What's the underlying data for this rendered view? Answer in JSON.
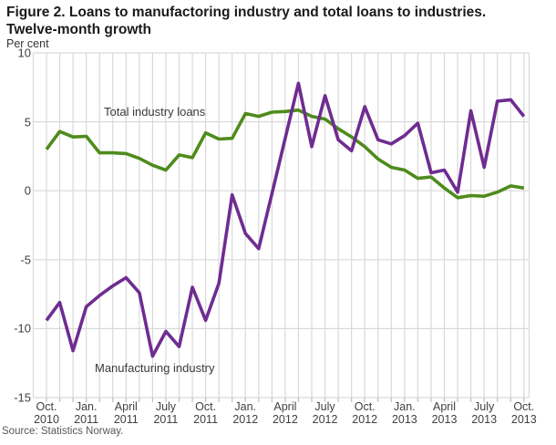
{
  "figure": {
    "title_line1": "Figure 2. Loans to manufactoring industry and total loans to industries.",
    "title_line2": "Twelve-month growth",
    "unit_label": "Per cent",
    "source": "Source: Statistics Norway."
  },
  "colors": {
    "total": "#4e8b1c",
    "manufacturing": "#6f2c91",
    "grid": "#d9d9d9",
    "tick": "#bfbfbf",
    "axis_text": "#404040"
  },
  "chart_data": {
    "type": "line",
    "title": "Figure 2. Loans to manufactoring industry and total loans to industries. Twelve-month growth",
    "ylabel": "Per cent",
    "ylim": [
      -15,
      10
    ],
    "yticks": [
      10,
      5,
      0,
      -5,
      -10,
      -15
    ],
    "grid": "on",
    "legend_position": "inline-annotations",
    "x_months": [
      "Oct 2010",
      "Nov 2010",
      "Dec 2010",
      "Jan 2011",
      "Feb 2011",
      "Mar 2011",
      "Apr 2011",
      "May 2011",
      "Jun 2011",
      "Jul 2011",
      "Aug 2011",
      "Sep 2011",
      "Oct 2011",
      "Nov 2011",
      "Dec 2011",
      "Jan 2012",
      "Feb 2012",
      "Mar 2012",
      "Apr 2012",
      "May 2012",
      "Jun 2012",
      "Jul 2012",
      "Aug 2012",
      "Sep 2012",
      "Oct 2012",
      "Nov 2012",
      "Dec 2012",
      "Jan 2013",
      "Feb 2013",
      "Mar 2013",
      "Apr 2013",
      "May 2013",
      "Jun 2013",
      "Jul 2013",
      "Aug 2013",
      "Sep 2013",
      "Oct 2013"
    ],
    "x_tick_labels": [
      {
        "month": "Oct.",
        "year": "2010"
      },
      {
        "month": "Jan.",
        "year": "2011"
      },
      {
        "month": "April",
        "year": "2011"
      },
      {
        "month": "July",
        "year": "2011"
      },
      {
        "month": "Oct.",
        "year": "2011"
      },
      {
        "month": "Jan.",
        "year": "2012"
      },
      {
        "month": "April",
        "year": "2012"
      },
      {
        "month": "July",
        "year": "2012"
      },
      {
        "month": "Oct.",
        "year": "2012"
      },
      {
        "month": "Jan.",
        "year": "2013"
      },
      {
        "month": "April",
        "year": "2013"
      },
      {
        "month": "July",
        "year": "2013"
      },
      {
        "month": "Oct.",
        "year": "2013"
      }
    ],
    "x_tick_every": 3,
    "series": [
      {
        "name": "Total industry loans",
        "color_key": "total",
        "label_x": 114,
        "label_y": 115,
        "values": [
          3.0,
          4.3,
          3.9,
          3.95,
          2.75,
          2.75,
          2.7,
          2.35,
          1.85,
          1.5,
          2.6,
          2.4,
          4.2,
          3.75,
          3.8,
          5.6,
          5.4,
          5.7,
          5.75,
          5.85,
          5.4,
          5.2,
          4.5,
          3.9,
          3.2,
          2.3,
          1.7,
          1.5,
          0.9,
          1.0,
          0.2,
          -0.5,
          -0.35,
          -0.4,
          -0.1,
          0.35,
          0.2
        ]
      },
      {
        "name": "Manufacturing industry",
        "color_key": "manufacturing",
        "label_x": 104,
        "label_y": 396,
        "values": [
          -9.4,
          -8.1,
          -11.6,
          -8.4,
          -7.6,
          -6.9,
          -6.3,
          -7.4,
          -12.0,
          -10.2,
          -11.3,
          -7.0,
          -9.4,
          -6.7,
          -0.3,
          -3.1,
          -4.2,
          -0.2,
          3.8,
          7.8,
          3.2,
          6.9,
          3.7,
          2.9,
          6.1,
          3.7,
          3.4,
          4.0,
          4.9,
          1.3,
          1.5,
          -0.1,
          5.8,
          1.7,
          6.5,
          6.6,
          5.4
        ]
      }
    ]
  }
}
